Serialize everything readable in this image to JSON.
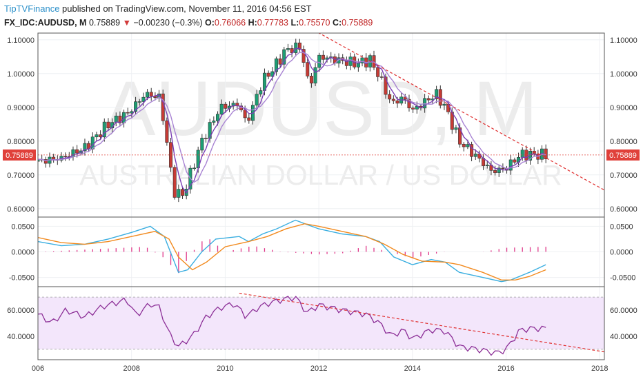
{
  "header": {
    "brand": "TipTVFinance",
    "published": " published on TradingView.com, November 11, 2016 04:56 EST",
    "symbol": "FX_IDC:AUDUSD, M",
    "last": "0.75889",
    "change_arrow": "▼",
    "change": "−0.00230 (−0.3%)",
    "o_label": "O:",
    "o_value": "0.76066",
    "h_label": "H:",
    "h_value": "0.77783",
    "l_label": "L:",
    "l_value": "0.75570",
    "c_label": "C:",
    "c_value": "0.75889"
  },
  "watermark": {
    "symbol": "AUDUSD, M",
    "description": "AUSTRALIAN DOLLAR / US DOLLAR"
  },
  "colors": {
    "up": "#1d9e74",
    "down": "#c73b35",
    "ma_fast": "#7a3eb5",
    "ma_slow": "#a883d3",
    "trend": "#e03030",
    "macd": "#3aaee0",
    "signal": "#f28a1e",
    "hist": "#e0388a",
    "rsi": "#8c2f97",
    "rsi_band": "#f3e6fb",
    "price_tag": "#e0403a"
  },
  "icons": {
    "change_arrow": "down-triangle-icon"
  },
  "chart_data": [
    {
      "type": "candlestick",
      "panel": "price",
      "symbol": "FX_IDC:AUDUSD",
      "interval": "M",
      "x_ticks": [
        "006",
        "2008",
        "2010",
        "2012",
        "2014",
        "2016",
        "2018"
      ],
      "y_ticks": [
        "0.60000",
        "0.70000",
        "0.80000",
        "0.90000",
        "1.00000",
        "1.10000"
      ],
      "ylim": [
        0.575,
        1.12
      ],
      "xlim": [
        2006.0,
        2018.1
      ],
      "last_price_label": "0.75889",
      "last_price": 0.75889,
      "close_path": [
        [
          2006.0,
          0.74
        ],
        [
          2006.5,
          0.75
        ],
        [
          2007.0,
          0.78
        ],
        [
          2007.5,
          0.85
        ],
        [
          2007.9,
          0.88
        ],
        [
          2008.3,
          0.94
        ],
        [
          2008.6,
          0.93
        ],
        [
          2008.75,
          0.8
        ],
        [
          2008.9,
          0.65
        ],
        [
          2009.1,
          0.64
        ],
        [
          2009.5,
          0.8
        ],
        [
          2009.9,
          0.9
        ],
        [
          2010.3,
          0.91
        ],
        [
          2010.45,
          0.85
        ],
        [
          2010.8,
          0.98
        ],
        [
          2011.0,
          1.01
        ],
        [
          2011.3,
          1.07
        ],
        [
          2011.6,
          1.08
        ],
        [
          2011.8,
          0.96
        ],
        [
          2012.0,
          1.05
        ],
        [
          2012.4,
          1.04
        ],
        [
          2012.8,
          1.03
        ],
        [
          2013.1,
          1.04
        ],
        [
          2013.3,
          0.99
        ],
        [
          2013.55,
          0.91
        ],
        [
          2013.8,
          0.93
        ],
        [
          2014.0,
          0.89
        ],
        [
          2014.5,
          0.94
        ],
        [
          2014.7,
          0.9
        ],
        [
          2015.0,
          0.8
        ],
        [
          2015.4,
          0.75
        ],
        [
          2015.7,
          0.71
        ],
        [
          2016.0,
          0.72
        ],
        [
          2016.3,
          0.76
        ],
        [
          2016.6,
          0.76
        ],
        [
          2016.85,
          0.759
        ]
      ],
      "moving_averages": [
        {
          "name": "",
          "lag": 3
        },
        {
          "name": "",
          "lag": 6
        }
      ],
      "trendline": [
        [
          2011.35,
          1.17
        ],
        [
          2018.1,
          0.655
        ]
      ]
    },
    {
      "type": "line",
      "panel": "macd",
      "y_ticks": [
        "-0.0500",
        "0.0000",
        "0.0500"
      ],
      "ylim": [
        -0.068,
        0.068
      ],
      "series": [
        {
          "name": "",
          "role": "macd",
          "points": [
            [
              2006.0,
              0.02
            ],
            [
              2006.5,
              0.012
            ],
            [
              2007.0,
              0.015
            ],
            [
              2007.5,
              0.025
            ],
            [
              2008.0,
              0.038
            ],
            [
              2008.4,
              0.05
            ],
            [
              2008.7,
              0.03
            ],
            [
              2009.0,
              -0.04
            ],
            [
              2009.2,
              -0.035
            ],
            [
              2009.5,
              0.0
            ],
            [
              2009.8,
              0.025
            ],
            [
              2010.3,
              0.03
            ],
            [
              2010.5,
              0.02
            ],
            [
              2010.8,
              0.035
            ],
            [
              2011.1,
              0.045
            ],
            [
              2011.5,
              0.062
            ],
            [
              2011.7,
              0.055
            ],
            [
              2012.0,
              0.045
            ],
            [
              2012.5,
              0.035
            ],
            [
              2013.0,
              0.03
            ],
            [
              2013.3,
              0.02
            ],
            [
              2013.6,
              -0.01
            ],
            [
              2014.0,
              -0.025
            ],
            [
              2014.4,
              -0.015
            ],
            [
              2014.7,
              -0.02
            ],
            [
              2015.0,
              -0.04
            ],
            [
              2015.5,
              -0.05
            ],
            [
              2015.9,
              -0.058
            ],
            [
              2016.1,
              -0.055
            ],
            [
              2016.5,
              -0.04
            ],
            [
              2016.85,
              -0.025
            ]
          ]
        },
        {
          "name": "",
          "role": "signal",
          "points": [
            [
              2006.0,
              0.028
            ],
            [
              2006.5,
              0.018
            ],
            [
              2007.0,
              0.015
            ],
            [
              2007.5,
              0.02
            ],
            [
              2008.0,
              0.03
            ],
            [
              2008.5,
              0.04
            ],
            [
              2008.8,
              0.025
            ],
            [
              2009.0,
              -0.01
            ],
            [
              2009.3,
              -0.035
            ],
            [
              2009.6,
              -0.02
            ],
            [
              2010.0,
              0.01
            ],
            [
              2010.5,
              0.02
            ],
            [
              2010.9,
              0.03
            ],
            [
              2011.3,
              0.045
            ],
            [
              2011.7,
              0.055
            ],
            [
              2012.0,
              0.05
            ],
            [
              2012.5,
              0.04
            ],
            [
              2013.0,
              0.03
            ],
            [
              2013.4,
              0.015
            ],
            [
              2013.8,
              -0.005
            ],
            [
              2014.2,
              -0.018
            ],
            [
              2014.7,
              -0.02
            ],
            [
              2015.0,
              -0.025
            ],
            [
              2015.5,
              -0.04
            ],
            [
              2015.9,
              -0.055
            ],
            [
              2016.2,
              -0.055
            ],
            [
              2016.5,
              -0.048
            ],
            [
              2016.85,
              -0.035
            ]
          ]
        }
      ],
      "histogram": [
        [
          2006.0,
          0.0
        ],
        [
          2008.3,
          0.01
        ],
        [
          2008.7,
          -0.012
        ],
        [
          2009.0,
          -0.042
        ],
        [
          2009.3,
          0.0
        ],
        [
          2009.6,
          0.03
        ],
        [
          2010.0,
          0.0
        ],
        [
          2010.6,
          0.012
        ],
        [
          2011.2,
          0.0
        ],
        [
          2012.0,
          -0.005
        ],
        [
          2012.5,
          -0.003
        ],
        [
          2013.0,
          0.012
        ],
        [
          2013.5,
          0.0
        ],
        [
          2014.0,
          -0.012
        ],
        [
          2014.7,
          0.0
        ],
        [
          2015.5,
          0.0
        ],
        [
          2016.0,
          0.008
        ],
        [
          2016.85,
          0.01
        ]
      ]
    },
    {
      "type": "line",
      "panel": "rsi",
      "y_ticks": [
        "40.0000",
        "60.0000"
      ],
      "ylim": [
        22,
        78
      ],
      "band": [
        30,
        70
      ],
      "series": [
        {
          "name": "",
          "role": "rsi",
          "points": [
            [
              2006.0,
              57
            ],
            [
              2006.3,
              50
            ],
            [
              2006.6,
              60
            ],
            [
              2007.0,
              55
            ],
            [
              2007.4,
              63
            ],
            [
              2007.9,
              68
            ],
            [
              2008.1,
              56
            ],
            [
              2008.4,
              65
            ],
            [
              2008.6,
              62
            ],
            [
              2008.8,
              42
            ],
            [
              2009.0,
              32
            ],
            [
              2009.3,
              40
            ],
            [
              2009.6,
              55
            ],
            [
              2009.9,
              62
            ],
            [
              2010.2,
              65
            ],
            [
              2010.45,
              55
            ],
            [
              2010.7,
              62
            ],
            [
              2010.9,
              65
            ],
            [
              2011.2,
              68
            ],
            [
              2011.5,
              70
            ],
            [
              2011.75,
              58
            ],
            [
              2012.0,
              64
            ],
            [
              2012.5,
              60
            ],
            [
              2013.0,
              57
            ],
            [
              2013.3,
              50
            ],
            [
              2013.55,
              40
            ],
            [
              2013.8,
              45
            ],
            [
              2014.0,
              38
            ],
            [
              2014.4,
              45
            ],
            [
              2014.7,
              44
            ],
            [
              2015.0,
              32
            ],
            [
              2015.4,
              30
            ],
            [
              2015.8,
              27
            ],
            [
              2016.0,
              30
            ],
            [
              2016.3,
              45
            ],
            [
              2016.6,
              46
            ],
            [
              2016.85,
              46
            ]
          ]
        }
      ],
      "trendline": [
        [
          2010.3,
          73
        ],
        [
          2018.1,
          28
        ]
      ]
    }
  ]
}
